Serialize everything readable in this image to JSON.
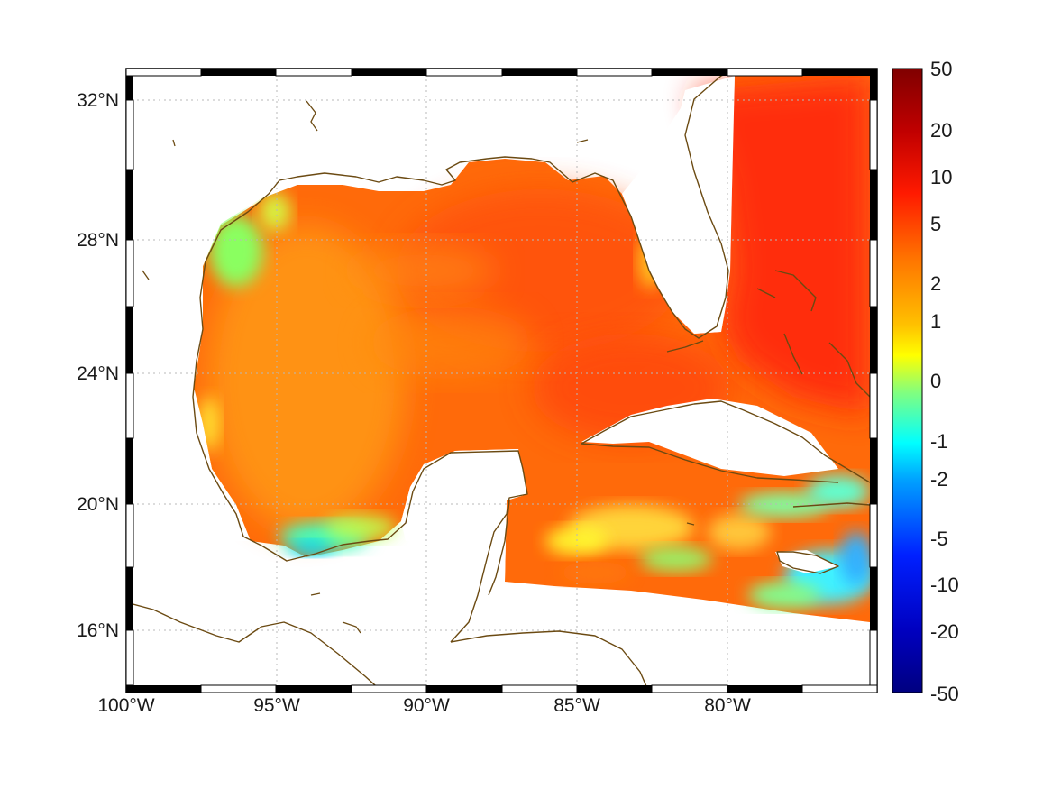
{
  "map": {
    "x_ticks": [
      "100°W",
      "95°W",
      "90°W",
      "85°W",
      "80°W"
    ],
    "y_ticks": [
      "32°N",
      "28°N",
      "24°N",
      "20°N",
      "16°N"
    ],
    "longitude_range": [
      -100,
      -75
    ],
    "latitude_range": [
      14.3,
      33
    ]
  },
  "colorbar": {
    "labels": [
      "50",
      "20",
      "10",
      "5",
      "2",
      "1",
      "0",
      "-1",
      "-2",
      "-5",
      "-10",
      "-20",
      "-50"
    ],
    "colormap": "jet",
    "colors": [
      "#800000",
      "#ff0000",
      "#ff8000",
      "#ffff00",
      "#80ff80",
      "#00ffff",
      "#0080ff",
      "#0000ff",
      "#000080"
    ]
  },
  "chart_data": {
    "type": "heatmap",
    "title": "",
    "xlabel": "",
    "ylabel": "",
    "x_ticks": [
      "100°W",
      "95°W",
      "90°W",
      "85°W",
      "80°W"
    ],
    "y_ticks": [
      "32°N",
      "28°N",
      "24°N",
      "20°N",
      "16°N"
    ],
    "colorbar_ticks": [
      50,
      20,
      10,
      5,
      2,
      1,
      0,
      -1,
      -2,
      -5,
      -10,
      -20,
      -50
    ],
    "regions": [
      {
        "region": "Atlantic east of Florida",
        "approx_value": 15
      },
      {
        "region": "Central Gulf of Mexico",
        "approx_value": 6
      },
      {
        "region": "Western Gulf shelf (Texas)",
        "approx_value": 0.5
      },
      {
        "region": "Bay of Campeche south",
        "approx_value": -2
      },
      {
        "region": "Caribbean south of Cuba",
        "approx_value": 3
      },
      {
        "region": "South of Jamaica",
        "approx_value": -1
      }
    ]
  }
}
